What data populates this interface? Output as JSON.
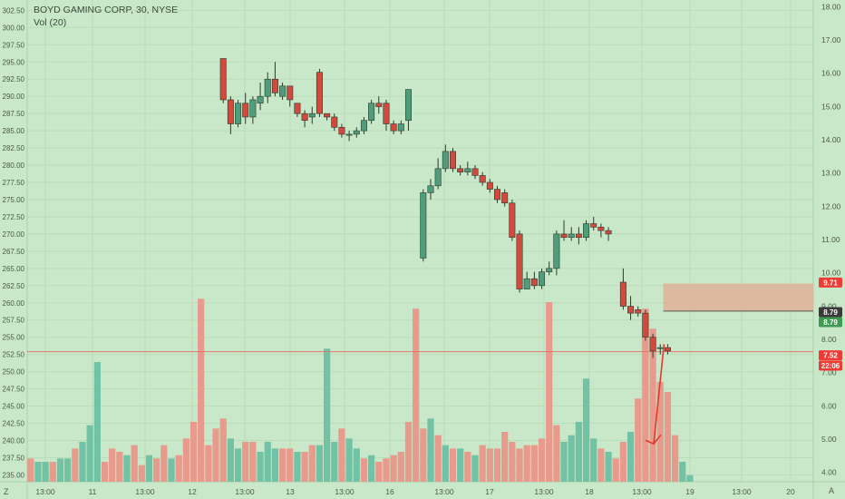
{
  "header": {
    "title": "BOYD GAMING CORP, 30, NYSE",
    "volume_label": "Vol (20)"
  },
  "corner_left": "Z",
  "corner_right": "A",
  "colors": {
    "background": "#c9e8c9",
    "up": "#4e9e7c",
    "down": "#d04a3e",
    "vol_up": "#72c2a6",
    "vol_down": "#e89a8c",
    "zone": "#ddb59a",
    "arrow": "#e23b2e",
    "hline": "#e0786c",
    "badge_red": "#ef3b33",
    "badge_dark": "#3a3a3a",
    "badge_green": "#3f9a54"
  },
  "chart_data": {
    "type": "candlestick",
    "title": "BOYD GAMING CORP, 30, NYSE",
    "left_axis": {
      "min": 234.0,
      "max": 304.0,
      "ticks": [
        "235.00",
        "237.50",
        "240.00",
        "242.50",
        "245.00",
        "247.50",
        "250.00",
        "252.50",
        "255.00",
        "257.50",
        "260.00",
        "262.50",
        "265.00",
        "267.50",
        "270.00",
        "272.50",
        "275.00",
        "277.50",
        "280.00",
        "282.50",
        "285.00",
        "287.50",
        "290.00",
        "292.50",
        "295.00",
        "297.50",
        "300.00",
        "302.50"
      ]
    },
    "right_axis": {
      "min": 3.72,
      "max": 18.2,
      "ticks": [
        "4.00",
        "5.00",
        "6.00",
        "7.00",
        "8.00",
        "9.00",
        "10.00",
        "11.00",
        "12.00",
        "13.00",
        "14.00",
        "15.00",
        "16.00",
        "17.00",
        "18.00"
      ]
    },
    "x_labels": [
      "13:00",
      "11",
      "13:00",
      "12",
      "13:00",
      "13",
      "13:00",
      "16",
      "13:00",
      "17",
      "13:00",
      "18",
      "13:00",
      "19",
      "13:00",
      "20"
    ],
    "candles": [
      [
        295.5,
        289.5,
        295.5,
        289.0
      ],
      [
        289.5,
        286.0,
        290.0,
        284.5
      ],
      [
        286.0,
        289.0,
        289.5,
        285.5
      ],
      [
        289.0,
        287.0,
        290.5,
        286.0
      ],
      [
        287.0,
        289.5,
        290.0,
        286.0
      ],
      [
        289.0,
        290.0,
        292.0,
        288.0
      ],
      [
        290.0,
        292.5,
        293.5,
        289.0
      ],
      [
        292.5,
        290.5,
        295.0,
        290.0
      ],
      [
        290.0,
        291.5,
        292.0,
        289.5
      ],
      [
        291.5,
        289.5,
        291.5,
        288.5
      ],
      [
        289.0,
        287.5,
        289.0,
        287.0
      ],
      [
        287.5,
        286.5,
        288.0,
        285.5
      ],
      [
        287.0,
        287.5,
        288.5,
        286.0
      ],
      [
        293.5,
        287.5,
        294.0,
        287.0
      ],
      [
        287.5,
        287.0,
        287.5,
        286.5
      ],
      [
        287.0,
        285.5,
        287.5,
        285.0
      ],
      [
        285.5,
        284.5,
        286.0,
        284.0
      ],
      [
        284.5,
        284.5,
        285.0,
        283.5
      ],
      [
        284.5,
        285.0,
        285.5,
        284.0
      ],
      [
        285.0,
        286.5,
        287.0,
        284.5
      ],
      [
        286.5,
        289.0,
        289.5,
        286.0
      ],
      [
        289.0,
        288.5,
        290.0,
        287.5
      ],
      [
        289.0,
        286.0,
        289.5,
        285.0
      ],
      [
        286.0,
        285.0,
        286.5,
        284.5
      ],
      [
        285.0,
        286.0,
        286.5,
        284.5
      ],
      [
        286.5,
        291.0,
        291.0,
        285.0
      ],
      [
        266.5,
        276.0,
        276.5,
        266.0
      ],
      [
        276.0,
        277.0,
        278.0,
        275.0
      ],
      [
        277.0,
        279.5,
        281.0,
        276.5
      ],
      [
        279.5,
        282.0,
        283.0,
        279.0
      ],
      [
        282.0,
        279.5,
        282.5,
        279.0
      ],
      [
        279.5,
        279.0,
        280.0,
        278.5
      ],
      [
        279.0,
        279.5,
        280.5,
        278.5
      ],
      [
        279.5,
        278.5,
        280.0,
        278.0
      ],
      [
        278.5,
        277.5,
        279.0,
        277.0
      ],
      [
        277.5,
        276.5,
        278.0,
        276.0
      ],
      [
        276.5,
        275.0,
        277.0,
        274.5
      ],
      [
        276.0,
        274.5,
        276.5,
        274.0
      ],
      [
        274.5,
        269.5,
        275.0,
        269.0
      ],
      [
        270.0,
        262.0,
        270.5,
        261.5
      ],
      [
        262.0,
        263.5,
        264.5,
        262.0
      ],
      [
        263.5,
        262.5,
        264.5,
        262.0
      ],
      [
        262.5,
        264.5,
        265.0,
        262.0
      ],
      [
        264.5,
        265.0,
        266.0,
        264.0
      ],
      [
        265.0,
        270.0,
        270.5,
        264.0
      ],
      [
        270.0,
        269.5,
        272.0,
        269.0
      ],
      [
        269.5,
        270.0,
        271.0,
        269.0
      ],
      [
        270.0,
        269.5,
        271.0,
        268.5
      ],
      [
        269.5,
        271.5,
        272.0,
        269.0
      ],
      [
        271.5,
        271.0,
        272.5,
        270.5
      ],
      [
        271.0,
        270.5,
        271.5,
        269.5
      ],
      [
        270.5,
        270.0,
        271.0,
        269.0
      ],
      [
        263.0,
        259.5,
        265.0,
        259.0
      ],
      [
        259.5,
        258.5,
        261.0,
        257.5
      ],
      [
        259.0,
        258.5,
        259.5,
        258.0
      ],
      [
        258.5,
        255.0,
        259.0,
        254.5
      ],
      [
        255.0,
        253.0,
        255.5,
        252.0
      ],
      [
        253.5,
        253.5,
        254.0,
        252.5
      ],
      [
        253.5,
        253.0,
        254.0,
        252.5
      ]
    ],
    "candle_slots": [
      26,
      27,
      28,
      29,
      30,
      31,
      32,
      33,
      34,
      35,
      36,
      37,
      38,
      39,
      40,
      41,
      42,
      43,
      44,
      45,
      46,
      47,
      48,
      49,
      50,
      51,
      53,
      54,
      55,
      56,
      57,
      58,
      59,
      60,
      61,
      62,
      63,
      64,
      65,
      66,
      67,
      68,
      69,
      70,
      71,
      72,
      73,
      74,
      75,
      76,
      77,
      78,
      80,
      81,
      82,
      83,
      84,
      85,
      86
    ],
    "volume": [
      0.7,
      0.6,
      0.6,
      0.6,
      0.7,
      0.7,
      1.0,
      1.2,
      1.7,
      3.6,
      0.6,
      1.0,
      0.9,
      0.8,
      1.1,
      0.5,
      0.8,
      0.7,
      1.1,
      0.7,
      0.8,
      1.3,
      1.8,
      5.5,
      1.1,
      1.6,
      1.9,
      1.3,
      1.0,
      1.2,
      1.2,
      0.9,
      1.2,
      1.0,
      1.0,
      1.0,
      0.9,
      0.9,
      1.1,
      1.1,
      4.0,
      1.2,
      1.6,
      1.3,
      1.0,
      0.7,
      0.8,
      0.6,
      0.7,
      0.8,
      0.9,
      1.8,
      5.2,
      1.6,
      1.9,
      1.4,
      1.1,
      1.0,
      1.0,
      0.9,
      0.8,
      1.1,
      1.0,
      1.0,
      1.5,
      1.2,
      1.0,
      1.1,
      1.1,
      1.3,
      5.4,
      1.7,
      1.2,
      1.4,
      1.8,
      3.1,
      1.3,
      1.0,
      0.9,
      0.7,
      1.2,
      1.5,
      2.5,
      5.2,
      4.6,
      3.0,
      2.7,
      1.4,
      0.6,
      0.2
    ],
    "volume_up": [
      false,
      true,
      true,
      false,
      true,
      true,
      false,
      true,
      true,
      true,
      false,
      false,
      false,
      true,
      false,
      false,
      true,
      false,
      false,
      true,
      false,
      false,
      false,
      false,
      false,
      false,
      false,
      true,
      true,
      false,
      false,
      true,
      true,
      true,
      false,
      false,
      true,
      false,
      false,
      true,
      true,
      true,
      false,
      true,
      true,
      false,
      true,
      false,
      false,
      false,
      false,
      false,
      false,
      false,
      true,
      false,
      true,
      false,
      true,
      false,
      true,
      false,
      false,
      false,
      false,
      false,
      false,
      false,
      false,
      false,
      false,
      false,
      true,
      true,
      true,
      true,
      true,
      false,
      true,
      false,
      false,
      true,
      false,
      false,
      false,
      false,
      false,
      false,
      true,
      true
    ],
    "resistance_zone": {
      "price_low": 258.8,
      "price_high": 262.8,
      "x_from_slot": 85.4
    },
    "horizontal_line": {
      "price": 252.9
    },
    "projection_arrow": {
      "from_price": 254.0,
      "to_price": 239.5
    },
    "last_price_labels": [
      {
        "text": "9.71",
        "style": "red",
        "value": 9.71
      },
      {
        "text": "8.79",
        "style": "dark",
        "value": 8.79
      },
      {
        "text": "8.79",
        "style": "green",
        "value": 8.79
      },
      {
        "text": "7.52",
        "style": "red",
        "value": 7.52
      },
      {
        "text": "22:06",
        "style": "red",
        "value": 7.12
      }
    ]
  }
}
